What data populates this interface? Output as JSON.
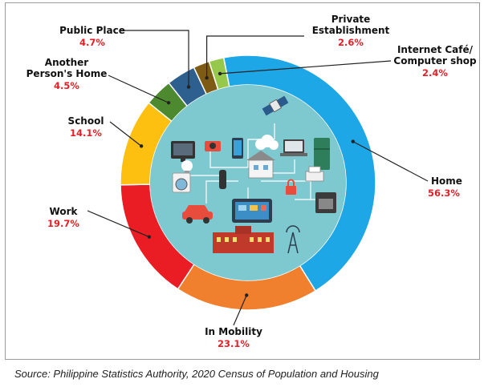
{
  "chart_data": {
    "type": "pie",
    "donut": true,
    "categories": [
      "Home",
      "In Mobility",
      "Work",
      "School",
      "Another Person's Home",
      "Public Place",
      "Private Establishment",
      "Internet Café/ Computer shop"
    ],
    "values": [
      56.3,
      23.1,
      19.7,
      14.1,
      4.5,
      4.7,
      2.6,
      2.4
    ],
    "value_labels": [
      "56.3%",
      "23.1%",
      "19.7%",
      "14.1%",
      "4.5%",
      "4.7%",
      "2.6%",
      "2.4%"
    ],
    "label_lines": [
      [
        "Home"
      ],
      [
        "In Mobility"
      ],
      [
        "Work"
      ],
      [
        "School"
      ],
      [
        "Another",
        "Person's Home"
      ],
      [
        "Public Place"
      ],
      [
        "Private",
        "Establishment"
      ],
      [
        "Internet Café/",
        "Computer shop"
      ]
    ],
    "colors": [
      "#1ea7e6",
      "#f07f2e",
      "#ea1c24",
      "#fdbf10",
      "#4d8a2f",
      "#2d5f8f",
      "#7d5b14",
      "#96c84c"
    ],
    "value_color": "#e41e26",
    "center_color": "#7ec8cf"
  },
  "source": "Source: Philippine Statistics Authority, 2020 Census of Population and Housing"
}
